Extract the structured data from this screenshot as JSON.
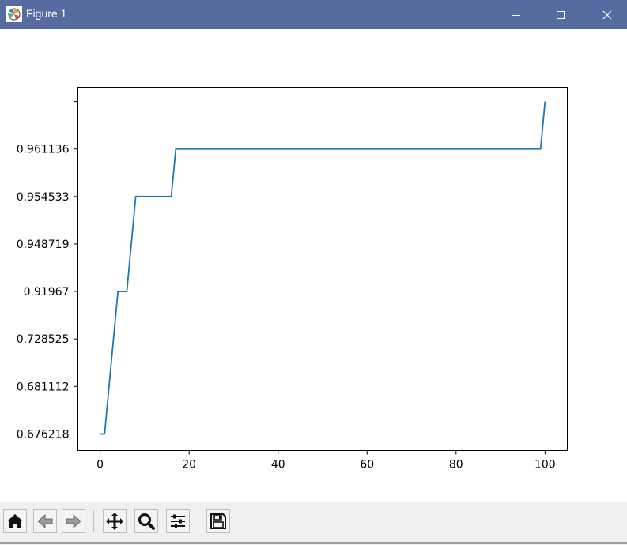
{
  "window": {
    "title": "Figure 1",
    "app_icon": "matplotlib-icon",
    "controls": [
      "minimize-icon",
      "maximize-icon",
      "close-icon"
    ]
  },
  "toolbar": {
    "buttons": [
      {
        "name": "home-icon"
      },
      {
        "name": "back-arrow-icon"
      },
      {
        "name": "forward-arrow-icon"
      },
      {
        "name": "pan-icon"
      },
      {
        "name": "zoom-icon"
      },
      {
        "name": "subplots-config-icon"
      },
      {
        "name": "save-icon"
      }
    ]
  },
  "chart_data": {
    "type": "line",
    "title": "",
    "xlabel": "",
    "ylabel": "",
    "xlim": [
      -5,
      105
    ],
    "xticks": [
      0,
      20,
      40,
      60,
      80,
      100
    ],
    "yticks": [
      "0.676218",
      "0.681112",
      "0.728525",
      "0.91967",
      "0.948719",
      "0.954533",
      "0.961136",
      ""
    ],
    "ytick_positions": [
      0,
      1,
      2,
      3,
      4,
      5,
      6,
      7
    ],
    "ylim": [
      -0.35,
      7.3
    ],
    "grid": false,
    "legend": "none",
    "color": "#1f77b4",
    "series": [
      {
        "x": [
          0,
          1,
          4,
          6,
          8,
          16,
          17,
          99,
          100
        ],
        "y": [
          0,
          0,
          3,
          3,
          5,
          5,
          6,
          6,
          7
        ]
      }
    ]
  }
}
